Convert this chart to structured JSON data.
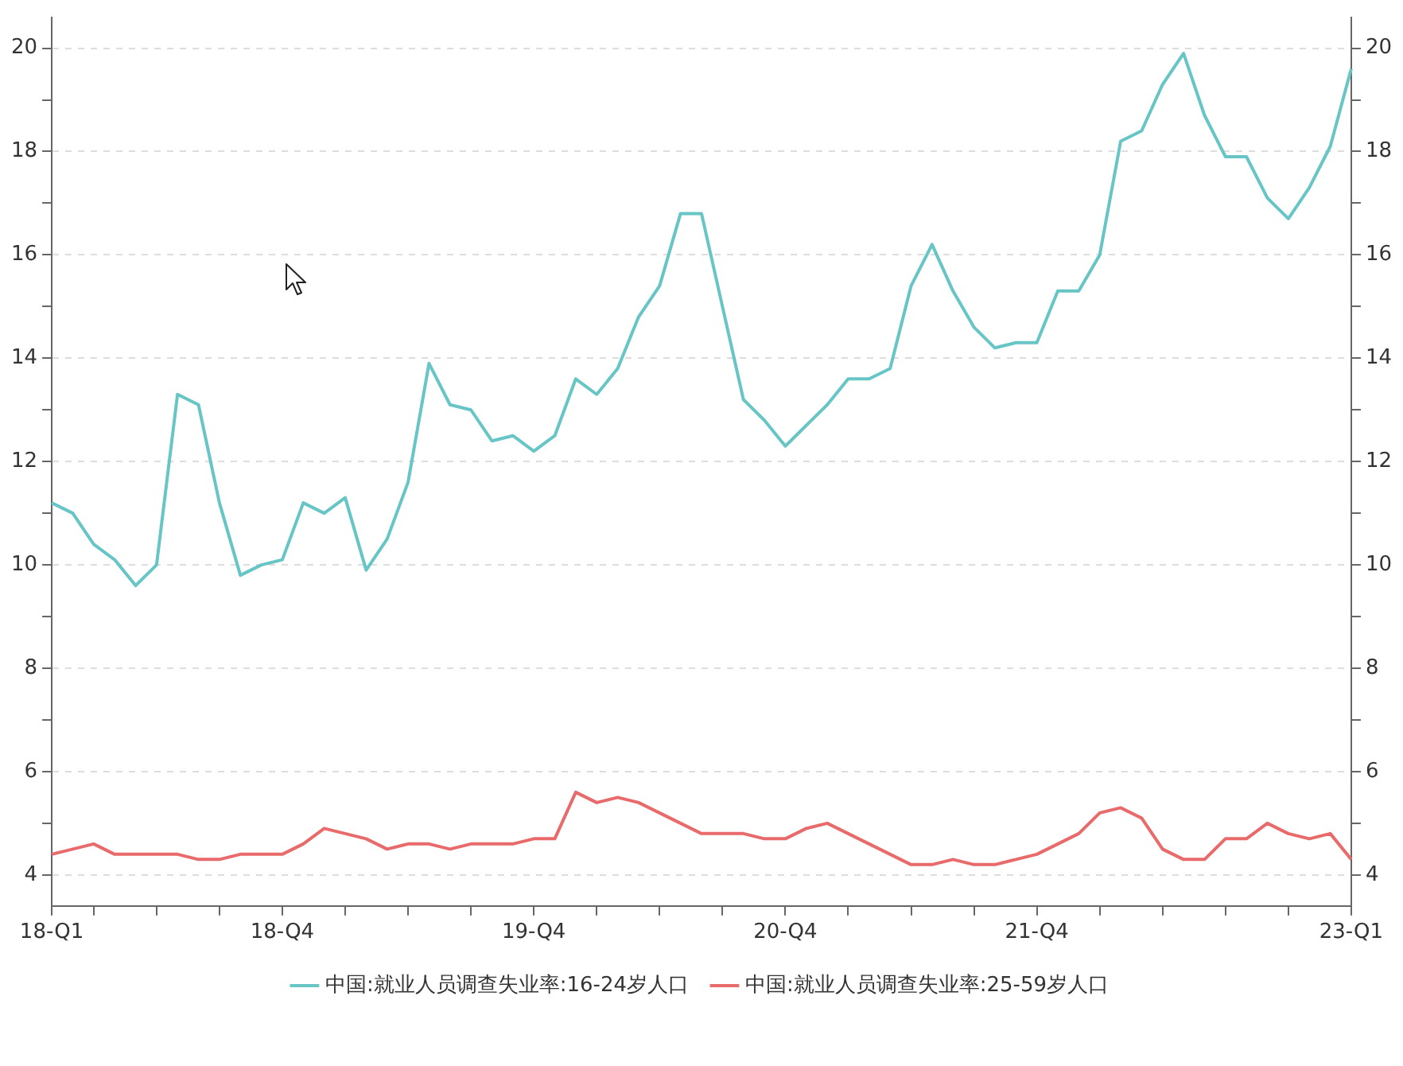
{
  "chart_data": {
    "type": "line",
    "categories": [
      "18-Q1",
      null,
      null,
      null,
      null,
      null,
      null,
      null,
      null,
      null,
      null,
      "18-Q4",
      null,
      null,
      null,
      null,
      null,
      null,
      null,
      null,
      null,
      null,
      null,
      "19-Q4",
      null,
      null,
      null,
      null,
      null,
      null,
      null,
      null,
      null,
      null,
      null,
      "20-Q4",
      null,
      null,
      null,
      null,
      null,
      null,
      null,
      null,
      null,
      null,
      null,
      "21-Q4",
      null,
      null,
      null,
      null,
      null,
      null,
      null,
      null,
      null,
      null,
      null,
      null,
      null,
      null,
      "23-Q1"
    ],
    "series": [
      {
        "name": "中国:就业人员调查失业率:16-24岁人口",
        "color": "#67c5c6",
        "values": [
          11.2,
          11.0,
          10.4,
          10.1,
          9.6,
          10.0,
          13.3,
          13.1,
          11.2,
          9.8,
          10.0,
          10.1,
          11.2,
          11.0,
          11.3,
          9.9,
          10.5,
          11.6,
          13.9,
          13.1,
          13.0,
          12.4,
          12.5,
          12.2,
          12.5,
          13.6,
          13.3,
          13.8,
          14.8,
          15.4,
          16.8,
          16.8,
          15.0,
          13.2,
          12.8,
          12.3,
          12.7,
          13.1,
          13.6,
          13.6,
          13.8,
          15.4,
          16.2,
          15.3,
          14.6,
          14.2,
          14.3,
          14.3,
          15.3,
          15.3,
          16.0,
          18.2,
          18.4,
          19.3,
          19.9,
          18.7,
          17.9,
          17.9,
          17.1,
          16.7,
          17.3,
          18.1,
          19.6
        ]
      },
      {
        "name": "中国:就业人员调查失业率:25-59岁人口",
        "color": "#e86a6a",
        "values": [
          4.4,
          4.5,
          4.6,
          4.4,
          4.4,
          4.4,
          4.4,
          4.3,
          4.3,
          4.4,
          4.4,
          4.4,
          4.6,
          4.9,
          4.8,
          4.7,
          4.5,
          4.6,
          4.6,
          4.5,
          4.6,
          4.6,
          4.6,
          4.7,
          4.7,
          5.6,
          5.4,
          5.5,
          5.4,
          5.2,
          5.0,
          4.8,
          4.8,
          4.8,
          4.7,
          4.7,
          4.9,
          5.0,
          4.8,
          4.6,
          4.4,
          4.2,
          4.2,
          4.3,
          4.2,
          4.2,
          4.3,
          4.4,
          4.6,
          4.8,
          5.2,
          5.3,
          5.1,
          4.5,
          4.3,
          4.3,
          4.7,
          4.7,
          5.0,
          4.8,
          4.7,
          4.8,
          4.3
        ]
      }
    ],
    "ylim": [
      3.4,
      20.6
    ],
    "yticks": [
      4,
      {
        "value": 5,
        "label": null
      },
      6,
      {
        "value": 7,
        "label": null
      },
      8,
      {
        "value": 9,
        "label": null
      },
      10,
      {
        "value": 11,
        "label": null
      },
      12,
      {
        "value": 13,
        "label": null
      },
      14,
      {
        "value": 15,
        "label": null
      },
      16,
      {
        "value": 17,
        "label": null
      },
      18,
      {
        "value": 19,
        "label": null
      },
      20
    ],
    "y2lim": [
      3.4,
      20.6
    ],
    "y2ticks": [
      4,
      {
        "value": 5,
        "label": null
      },
      6,
      {
        "value": 7,
        "label": null
      },
      8,
      {
        "value": 9,
        "label": null
      },
      10,
      {
        "value": 11,
        "label": null
      },
      12,
      {
        "value": 13,
        "label": null
      },
      14,
      {
        "value": 15,
        "label": null
      },
      16,
      {
        "value": 17,
        "label": null
      },
      18,
      {
        "value": 19,
        "label": null
      },
      20
    ],
    "grid": "y",
    "legend": "bottom",
    "marker": "none",
    "line_style": "solid"
  }
}
